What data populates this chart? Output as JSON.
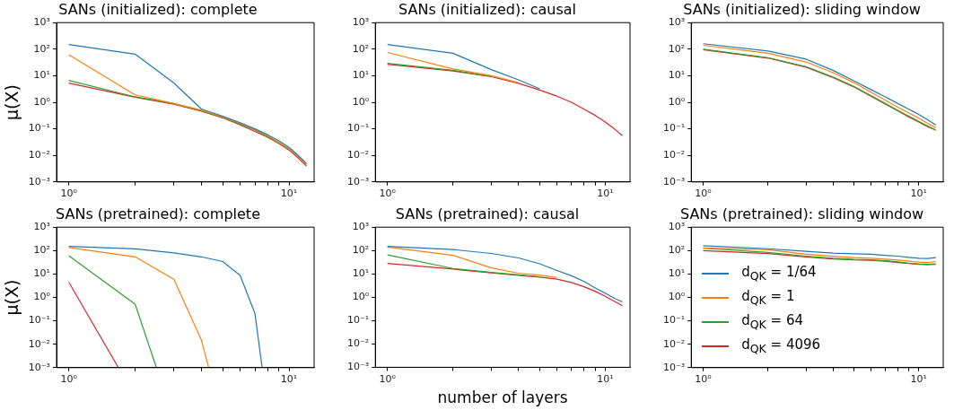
{
  "chart_data": [
    {
      "type": "line",
      "title": "SANs (initialized): complete",
      "ylabel": "μ(X)",
      "log": "xy",
      "legend": false,
      "x": [
        1,
        2,
        3,
        4,
        5,
        6,
        7,
        8,
        9,
        10,
        11,
        12
      ],
      "xlim": [
        0.88,
        13
      ],
      "ylim": [
        0.001,
        1000
      ],
      "xticks": [
        {
          "value": 1,
          "label": "10⁰"
        },
        {
          "value": 2,
          "label": null
        },
        {
          "value": 3,
          "label": null
        },
        {
          "value": 4,
          "label": null
        },
        {
          "value": 5,
          "label": null
        },
        {
          "value": 6,
          "label": null
        },
        {
          "value": 7,
          "label": null
        },
        {
          "value": 8,
          "label": null
        },
        {
          "value": 9,
          "label": null
        },
        {
          "value": 10,
          "label": "10¹"
        }
      ],
      "yticks": [
        {
          "value": 0.001,
          "label": "10⁻³"
        },
        {
          "value": 0.01,
          "label": "10⁻²"
        },
        {
          "value": 0.1,
          "label": "10⁻¹"
        },
        {
          "value": 1,
          "label": "10⁰"
        },
        {
          "value": 10,
          "label": "10¹"
        },
        {
          "value": 100,
          "label": "10²"
        },
        {
          "value": 1000,
          "label": "10³"
        }
      ],
      "series": [
        {
          "color": "#1f77b4",
          "values": [
            150,
            65,
            5.3,
            0.56,
            0.3,
            0.17,
            0.1,
            0.06,
            0.035,
            0.02,
            0.01,
            0.005
          ]
        },
        {
          "color": "#ff7f0e",
          "values": [
            62,
            1.9,
            0.9,
            0.5,
            0.28,
            0.16,
            0.09,
            0.055,
            0.03,
            0.018,
            0.009,
            0.0045
          ]
        },
        {
          "color": "#2ca02c",
          "values": [
            6.7,
            1.6,
            0.9,
            0.48,
            0.27,
            0.15,
            0.09,
            0.05,
            0.03,
            0.017,
            null,
            null
          ]
        },
        {
          "color": "#d62728",
          "values": [
            5.3,
            1.55,
            0.85,
            0.46,
            0.26,
            0.14,
            0.08,
            0.048,
            0.028,
            0.016,
            0.008,
            0.004
          ]
        }
      ]
    },
    {
      "type": "line",
      "title": "SANs (initialized): causal",
      "log": "xy",
      "legend": false,
      "x": [
        1,
        2,
        3,
        4,
        5,
        6,
        7,
        8,
        9,
        10,
        11,
        12
      ],
      "xlim": [
        0.88,
        13
      ],
      "ylim": [
        0.001,
        1000
      ],
      "xticks": [
        {
          "value": 1,
          "label": "10⁰"
        },
        {
          "value": 2,
          "label": null
        },
        {
          "value": 3,
          "label": null
        },
        {
          "value": 4,
          "label": null
        },
        {
          "value": 5,
          "label": null
        },
        {
          "value": 6,
          "label": null
        },
        {
          "value": 7,
          "label": null
        },
        {
          "value": 8,
          "label": null
        },
        {
          "value": 9,
          "label": null
        },
        {
          "value": 10,
          "label": "10¹"
        }
      ],
      "yticks": [
        {
          "value": 0.001,
          "label": "10⁻³"
        },
        {
          "value": 0.01,
          "label": "10⁻²"
        },
        {
          "value": 0.1,
          "label": "10⁻¹"
        },
        {
          "value": 1,
          "label": "10⁰"
        },
        {
          "value": 10,
          "label": "10¹"
        },
        {
          "value": 100,
          "label": "10²"
        },
        {
          "value": 1000,
          "label": "10³"
        }
      ],
      "series": [
        {
          "color": "#1f77b4",
          "values": [
            150,
            70,
            17,
            7,
            3.2,
            null,
            null,
            null,
            null,
            null,
            null,
            null
          ]
        },
        {
          "color": "#ff7f0e",
          "values": [
            75,
            18,
            10,
            5.5,
            null,
            null,
            null,
            null,
            null,
            null,
            null,
            null
          ]
        },
        {
          "color": "#2ca02c",
          "values": [
            29,
            16,
            9.5,
            null,
            null,
            null,
            null,
            null,
            null,
            null,
            null,
            null
          ]
        },
        {
          "color": "#d62728",
          "values": [
            27,
            15,
            9.2,
            5.2,
            2.9,
            1.7,
            1.0,
            0.55,
            0.32,
            0.18,
            0.1,
            0.055
          ]
        }
      ]
    },
    {
      "type": "line",
      "title": "SANs (initialized): sliding window",
      "log": "xy",
      "legend": false,
      "x": [
        1,
        2,
        3,
        4,
        5,
        6,
        7,
        8,
        9,
        10,
        11,
        12
      ],
      "xlim": [
        0.88,
        13
      ],
      "ylim": [
        0.001,
        1000
      ],
      "xticks": [
        {
          "value": 1,
          "label": "10⁰"
        },
        {
          "value": 2,
          "label": null
        },
        {
          "value": 3,
          "label": null
        },
        {
          "value": 4,
          "label": null
        },
        {
          "value": 5,
          "label": null
        },
        {
          "value": 6,
          "label": null
        },
        {
          "value": 7,
          "label": null
        },
        {
          "value": 8,
          "label": null
        },
        {
          "value": 9,
          "label": null
        },
        {
          "value": 10,
          "label": "10¹"
        }
      ],
      "yticks": [
        {
          "value": 0.001,
          "label": "10⁻³"
        },
        {
          "value": 0.01,
          "label": "10⁻²"
        },
        {
          "value": 0.1,
          "label": "10⁻¹"
        },
        {
          "value": 1,
          "label": "10⁰"
        },
        {
          "value": 10,
          "label": "10¹"
        },
        {
          "value": 100,
          "label": "10²"
        },
        {
          "value": 1000,
          "label": "10³"
        }
      ],
      "series": [
        {
          "color": "#1f77b4",
          "values": [
            160,
            85,
            42,
            16,
            6.5,
            3.0,
            1.6,
            0.9,
            0.55,
            0.35,
            0.22,
            0.14
          ]
        },
        {
          "color": "#ff7f0e",
          "values": [
            140,
            70,
            33,
            13,
            5.5,
            2.4,
            1.2,
            0.65,
            0.4,
            0.25,
            0.16,
            0.11
          ]
        },
        {
          "color": "#2ca02c",
          "values": [
            100,
            48,
            22,
            9,
            4,
            1.8,
            0.9,
            0.5,
            0.3,
            0.19,
            0.13,
            0.09
          ]
        },
        {
          "color": "#d62728",
          "values": [
            95,
            46,
            21,
            8.5,
            3.8,
            1.7,
            0.85,
            0.48,
            0.28,
            0.18,
            0.12,
            0.09
          ]
        }
      ]
    },
    {
      "type": "line",
      "title": "SANs (pretrained): complete",
      "ylabel": "μ(X)",
      "log": "xy",
      "legend": false,
      "xlim": [
        0.88,
        13
      ],
      "ylim": [
        0.001,
        1000
      ],
      "xticks": [
        {
          "value": 1,
          "label": "10⁰"
        },
        {
          "value": 2,
          "label": null
        },
        {
          "value": 3,
          "label": null
        },
        {
          "value": 4,
          "label": null
        },
        {
          "value": 5,
          "label": null
        },
        {
          "value": 6,
          "label": null
        },
        {
          "value": 7,
          "label": null
        },
        {
          "value": 8,
          "label": null
        },
        {
          "value": 9,
          "label": null
        },
        {
          "value": 10,
          "label": "10¹"
        }
      ],
      "yticks": [
        {
          "value": 0.001,
          "label": "10⁻³"
        },
        {
          "value": 0.01,
          "label": "10⁻²"
        },
        {
          "value": 0.1,
          "label": "10⁻¹"
        },
        {
          "value": 1,
          "label": "10⁰"
        },
        {
          "value": 10,
          "label": "10¹"
        },
        {
          "value": 100,
          "label": "10²"
        },
        {
          "value": 1000,
          "label": "10³"
        }
      ],
      "series": [
        {
          "color": "#1f77b4",
          "x": [
            1,
            2,
            3,
            4,
            5,
            6,
            7,
            7.55
          ],
          "values": [
            150,
            118,
            80,
            54,
            34,
            8.7,
            0.21,
            0.001
          ]
        },
        {
          "color": "#ff7f0e",
          "x": [
            1,
            2,
            3,
            4,
            4.32
          ],
          "values": [
            135,
            54,
            6,
            0.015,
            0.001
          ]
        },
        {
          "color": "#2ca02c",
          "x": [
            1,
            2,
            2.5
          ],
          "values": [
            60,
            0.52,
            0.001
          ]
        },
        {
          "color": "#d62728",
          "x": [
            1,
            1.68
          ],
          "values": [
            4.5,
            0.001
          ]
        }
      ]
    },
    {
      "type": "line",
      "title": "SANs (pretrained): causal",
      "xlabel": "number of layers",
      "log": "xy",
      "legend": false,
      "x": [
        1,
        2,
        3,
        4,
        5,
        6,
        7,
        8,
        9,
        10,
        11,
        12
      ],
      "xlim": [
        0.88,
        13
      ],
      "ylim": [
        0.001,
        1000
      ],
      "xticks": [
        {
          "value": 1,
          "label": "10⁰"
        },
        {
          "value": 2,
          "label": null
        },
        {
          "value": 3,
          "label": null
        },
        {
          "value": 4,
          "label": null
        },
        {
          "value": 5,
          "label": null
        },
        {
          "value": 6,
          "label": null
        },
        {
          "value": 7,
          "label": null
        },
        {
          "value": 8,
          "label": null
        },
        {
          "value": 9,
          "label": null
        },
        {
          "value": 10,
          "label": "10¹"
        }
      ],
      "yticks": [
        {
          "value": 0.001,
          "label": "10⁻³"
        },
        {
          "value": 0.01,
          "label": "10⁻²"
        },
        {
          "value": 0.1,
          "label": "10⁻¹"
        },
        {
          "value": 1,
          "label": "10⁰"
        },
        {
          "value": 10,
          "label": "10¹"
        },
        {
          "value": 100,
          "label": "10²"
        },
        {
          "value": 1000,
          "label": "10³"
        }
      ],
      "series": [
        {
          "color": "#1f77b4",
          "values": [
            150,
            110,
            75,
            48,
            27,
            14,
            8.3,
            4.7,
            2.5,
            1.5,
            0.9,
            0.63
          ]
        },
        {
          "color": "#ff7f0e",
          "values": [
            140,
            62,
            18,
            10.7,
            8.9,
            7,
            null,
            null,
            null,
            null,
            null,
            null
          ]
        },
        {
          "color": "#2ca02c",
          "values": [
            65,
            17,
            11.5,
            9,
            7.5,
            null,
            null,
            null,
            null,
            null,
            null,
            null
          ]
        },
        {
          "color": "#d62728",
          "values": [
            28,
            16,
            11,
            8.7,
            7.3,
            6,
            4.3,
            2.8,
            1.8,
            1.1,
            0.68,
            0.43
          ]
        }
      ]
    },
    {
      "type": "line",
      "title": "SANs (pretrained): sliding window",
      "log": "xy",
      "legend": "bottom left",
      "x": [
        1,
        2,
        3,
        4,
        5,
        6,
        7,
        8,
        9,
        10,
        11,
        12
      ],
      "xlim": [
        0.88,
        13
      ],
      "ylim": [
        0.001,
        1000
      ],
      "xticks": [
        {
          "value": 1,
          "label": "10⁰"
        },
        {
          "value": 2,
          "label": null
        },
        {
          "value": 3,
          "label": null
        },
        {
          "value": 4,
          "label": null
        },
        {
          "value": 5,
          "label": null
        },
        {
          "value": 6,
          "label": null
        },
        {
          "value": 7,
          "label": null
        },
        {
          "value": 8,
          "label": null
        },
        {
          "value": 9,
          "label": null
        },
        {
          "value": 10,
          "label": "10¹"
        }
      ],
      "yticks": [
        {
          "value": 0.001,
          "label": "10⁻³"
        },
        {
          "value": 0.01,
          "label": "10⁻²"
        },
        {
          "value": 0.1,
          "label": "10⁻¹"
        },
        {
          "value": 1,
          "label": "10⁰"
        },
        {
          "value": 10,
          "label": "10¹"
        },
        {
          "value": 100,
          "label": "10²"
        },
        {
          "value": 1000,
          "label": "10³"
        }
      ],
      "series": [
        {
          "name": "d$_{QK}$ = 1/64",
          "color": "#1f77b4",
          "values": [
            160,
            120,
            93,
            78,
            73,
            70,
            63,
            58,
            51,
            47,
            46,
            50
          ]
        },
        {
          "name": "d$_{QK}$ = 1",
          "color": "#ff7f0e",
          "values": [
            130,
            108,
            70,
            57,
            50,
            47,
            43,
            39,
            35,
            32,
            31,
            34
          ]
        },
        {
          "name": "d$_{QK}$ = 64",
          "color": "#2ca02c",
          "values": [
            125,
            83,
            58,
            47,
            42,
            40,
            37,
            33,
            29,
            27,
            26,
            27
          ]
        },
        {
          "name": "d$_{QK}$ = 4096",
          "color": "#d62728",
          "values": [
            100,
            74,
            54,
            44,
            40,
            38,
            35,
            31,
            28,
            26,
            25,
            26
          ]
        }
      ]
    }
  ]
}
